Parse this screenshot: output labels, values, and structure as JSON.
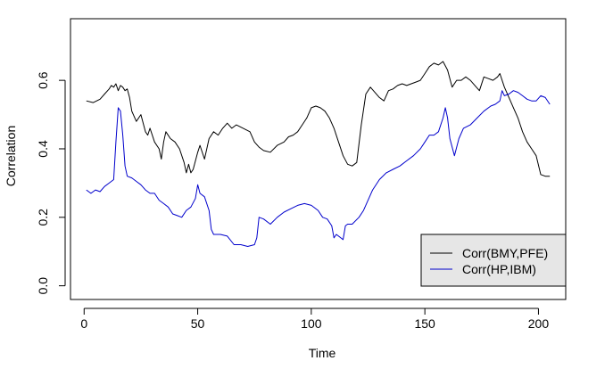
{
  "chart_data": {
    "type": "line",
    "title": "",
    "xlabel": "Time",
    "ylabel": "Correlation",
    "xlim": [
      -6,
      212
    ],
    "ylim": [
      -0.04,
      0.78
    ],
    "x_ticks": [
      0,
      50,
      100,
      150,
      200
    ],
    "y_ticks": [
      0.0,
      0.2,
      0.4,
      0.6
    ],
    "y_tick_labels": [
      "0.0",
      "0.2",
      "0.4",
      "0.6"
    ],
    "grid": false,
    "legend_position": "bottom-right",
    "series": [
      {
        "name": "Corr(BMY,PFE)",
        "color": "#000000",
        "x": [
          1,
          4,
          7,
          9,
          11,
          12,
          13,
          14,
          15,
          16,
          17,
          18,
          19,
          20,
          21,
          23,
          25,
          27,
          28,
          29,
          31,
          33,
          34,
          35,
          36,
          38,
          40,
          42,
          44,
          45,
          46,
          47,
          48,
          50,
          51,
          53,
          55,
          57,
          59,
          61,
          63,
          65,
          67,
          70,
          73,
          75,
          77,
          79,
          82,
          85,
          88,
          90,
          92,
          94,
          96,
          98,
          100,
          102,
          104,
          106,
          108,
          110,
          112,
          114,
          116,
          118,
          120,
          122,
          124,
          126,
          128,
          130,
          132,
          134,
          136,
          138,
          140,
          142,
          144,
          146,
          148,
          150,
          152,
          154,
          156,
          158,
          160,
          162,
          164,
          166,
          168,
          170,
          172,
          174,
          176,
          178,
          180,
          182,
          183,
          185,
          187,
          189,
          191,
          193,
          195,
          197,
          199,
          201,
          203,
          205
        ],
        "values": [
          0.54,
          0.535,
          0.545,
          0.56,
          0.575,
          0.585,
          0.58,
          0.59,
          0.57,
          0.585,
          0.58,
          0.57,
          0.575,
          0.55,
          0.51,
          0.48,
          0.5,
          0.45,
          0.44,
          0.46,
          0.42,
          0.4,
          0.37,
          0.42,
          0.45,
          0.43,
          0.42,
          0.4,
          0.36,
          0.33,
          0.355,
          0.33,
          0.34,
          0.39,
          0.41,
          0.37,
          0.43,
          0.45,
          0.44,
          0.46,
          0.475,
          0.46,
          0.47,
          0.46,
          0.45,
          0.42,
          0.405,
          0.395,
          0.39,
          0.41,
          0.42,
          0.435,
          0.44,
          0.45,
          0.47,
          0.49,
          0.52,
          0.525,
          0.52,
          0.51,
          0.49,
          0.46,
          0.42,
          0.38,
          0.355,
          0.35,
          0.36,
          0.47,
          0.56,
          0.58,
          0.565,
          0.55,
          0.54,
          0.57,
          0.575,
          0.585,
          0.59,
          0.585,
          0.59,
          0.595,
          0.6,
          0.62,
          0.64,
          0.65,
          0.645,
          0.655,
          0.63,
          0.58,
          0.6,
          0.6,
          0.61,
          0.6,
          0.585,
          0.57,
          0.61,
          0.605,
          0.6,
          0.61,
          0.62,
          0.58,
          0.55,
          0.52,
          0.49,
          0.45,
          0.42,
          0.4,
          0.38,
          0.325,
          0.32,
          0.32
        ]
      },
      {
        "name": "Corr(HP,IBM)",
        "color": "#0000cc",
        "x": [
          1,
          3,
          5,
          7,
          9,
          11,
          13,
          14,
          15,
          16,
          17,
          18,
          19,
          21,
          23,
          25,
          27,
          29,
          31,
          33,
          35,
          37,
          39,
          41,
          43,
          45,
          47,
          49,
          50,
          51,
          53,
          55,
          56,
          57,
          60,
          63,
          66,
          69,
          72,
          75,
          76,
          77,
          79,
          82,
          85,
          88,
          91,
          94,
          97,
          100,
          103,
          105,
          107,
          109,
          110,
          111,
          113,
          114,
          115,
          116,
          118,
          121,
          123,
          125,
          127,
          130,
          133,
          136,
          139,
          142,
          145,
          148,
          150,
          152,
          154,
          156,
          158,
          159,
          160,
          161,
          163,
          165,
          167,
          170,
          173,
          176,
          179,
          181,
          183,
          184,
          185,
          187,
          189,
          191,
          193,
          195,
          197,
          199,
          201,
          203,
          205
        ],
        "values": [
          0.28,
          0.27,
          0.28,
          0.275,
          0.29,
          0.3,
          0.31,
          0.42,
          0.52,
          0.51,
          0.44,
          0.35,
          0.32,
          0.315,
          0.305,
          0.295,
          0.28,
          0.27,
          0.27,
          0.25,
          0.24,
          0.23,
          0.21,
          0.205,
          0.2,
          0.22,
          0.23,
          0.255,
          0.295,
          0.27,
          0.26,
          0.22,
          0.165,
          0.15,
          0.15,
          0.145,
          0.12,
          0.12,
          0.115,
          0.12,
          0.14,
          0.2,
          0.195,
          0.18,
          0.2,
          0.215,
          0.225,
          0.235,
          0.24,
          0.235,
          0.22,
          0.2,
          0.195,
          0.175,
          0.14,
          0.15,
          0.14,
          0.135,
          0.175,
          0.18,
          0.18,
          0.2,
          0.22,
          0.25,
          0.28,
          0.31,
          0.33,
          0.34,
          0.35,
          0.365,
          0.38,
          0.4,
          0.42,
          0.44,
          0.44,
          0.45,
          0.49,
          0.52,
          0.49,
          0.43,
          0.38,
          0.43,
          0.46,
          0.47,
          0.49,
          0.51,
          0.525,
          0.53,
          0.54,
          0.57,
          0.555,
          0.56,
          0.57,
          0.565,
          0.555,
          0.545,
          0.54,
          0.54,
          0.555,
          0.55,
          0.53
        ]
      }
    ]
  }
}
